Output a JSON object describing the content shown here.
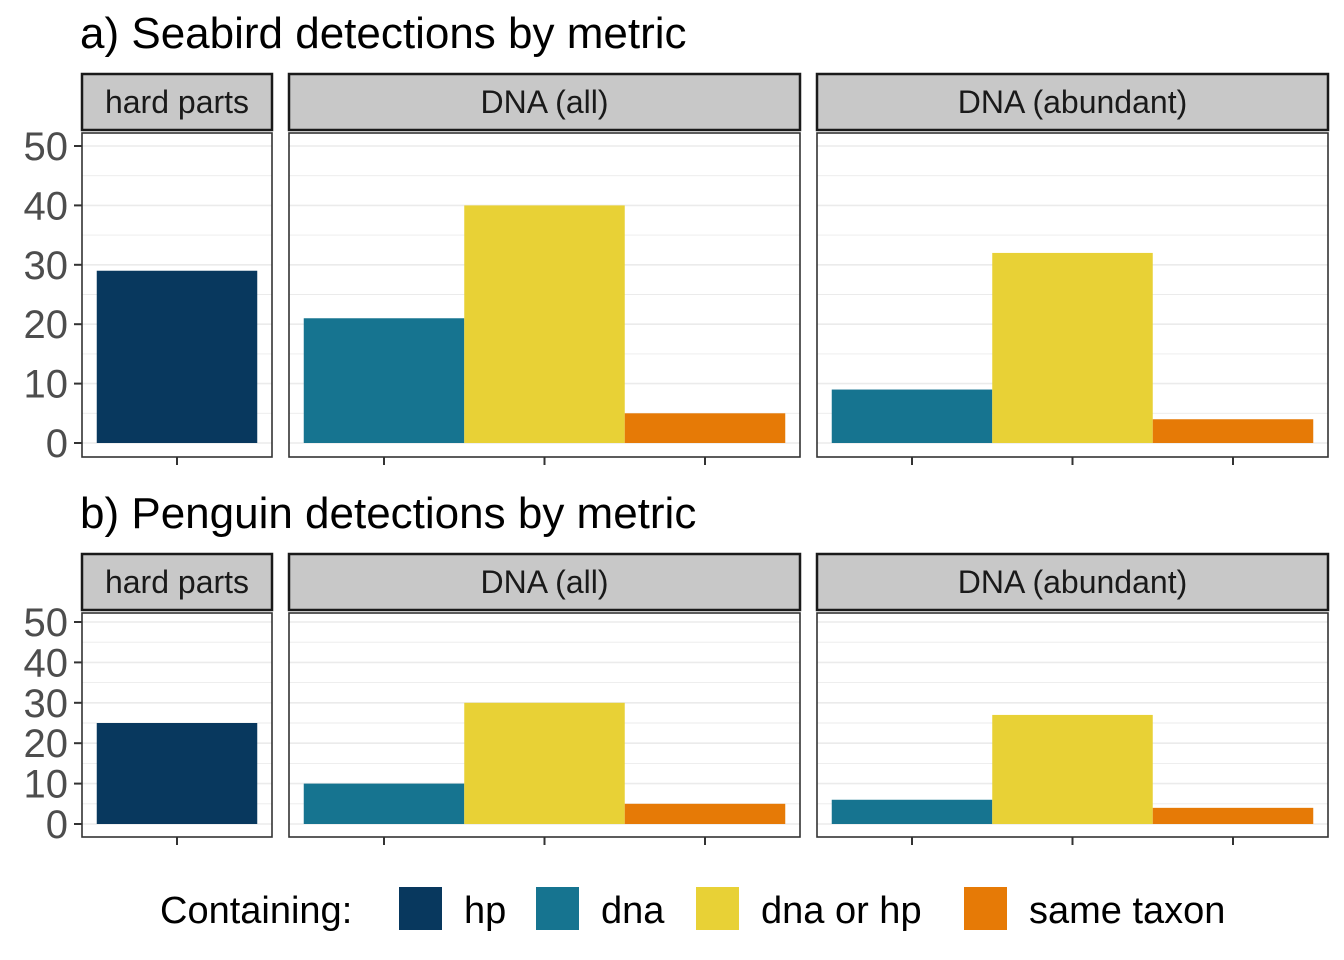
{
  "chart_data": [
    {
      "type": "bar",
      "title": "a) Seabird detections by metric",
      "ylim": [
        0,
        52
      ],
      "yticks": [
        0,
        10,
        20,
        30,
        40,
        50
      ],
      "grid": true,
      "facets": [
        {
          "label": "hard parts",
          "bars": [
            {
              "series": "hp",
              "value": 29
            }
          ]
        },
        {
          "label": "DNA (all)",
          "bars": [
            {
              "series": "dna",
              "value": 21
            },
            {
              "series": "dna or hp",
              "value": 40
            },
            {
              "series": "same taxon",
              "value": 5
            }
          ]
        },
        {
          "label": "DNA (abundant)",
          "bars": [
            {
              "series": "dna",
              "value": 9
            },
            {
              "series": "dna or hp",
              "value": 32
            },
            {
              "series": "same taxon",
              "value": 4
            }
          ]
        }
      ]
    },
    {
      "type": "bar",
      "title": "b) Penguin detections by metric",
      "ylim": [
        0,
        52
      ],
      "yticks": [
        0,
        10,
        20,
        30,
        40,
        50
      ],
      "grid": true,
      "facets": [
        {
          "label": "hard parts",
          "bars": [
            {
              "series": "hp",
              "value": 25
            }
          ]
        },
        {
          "label": "DNA (all)",
          "bars": [
            {
              "series": "dna",
              "value": 10
            },
            {
              "series": "dna or hp",
              "value": 30
            },
            {
              "series": "same taxon",
              "value": 5
            }
          ]
        },
        {
          "label": "DNA (abundant)",
          "bars": [
            {
              "series": "dna",
              "value": 6
            },
            {
              "series": "dna or hp",
              "value": 27
            },
            {
              "series": "same taxon",
              "value": 4
            }
          ]
        }
      ]
    }
  ],
  "legend": {
    "title": "Containing:",
    "position": "bottom",
    "items": [
      {
        "name": "hp",
        "color": "#08385E"
      },
      {
        "name": "dna",
        "color": "#167490"
      },
      {
        "name": "dna or hp",
        "color": "#E8D136"
      },
      {
        "name": "same taxon",
        "color": "#E67A06"
      }
    ]
  }
}
